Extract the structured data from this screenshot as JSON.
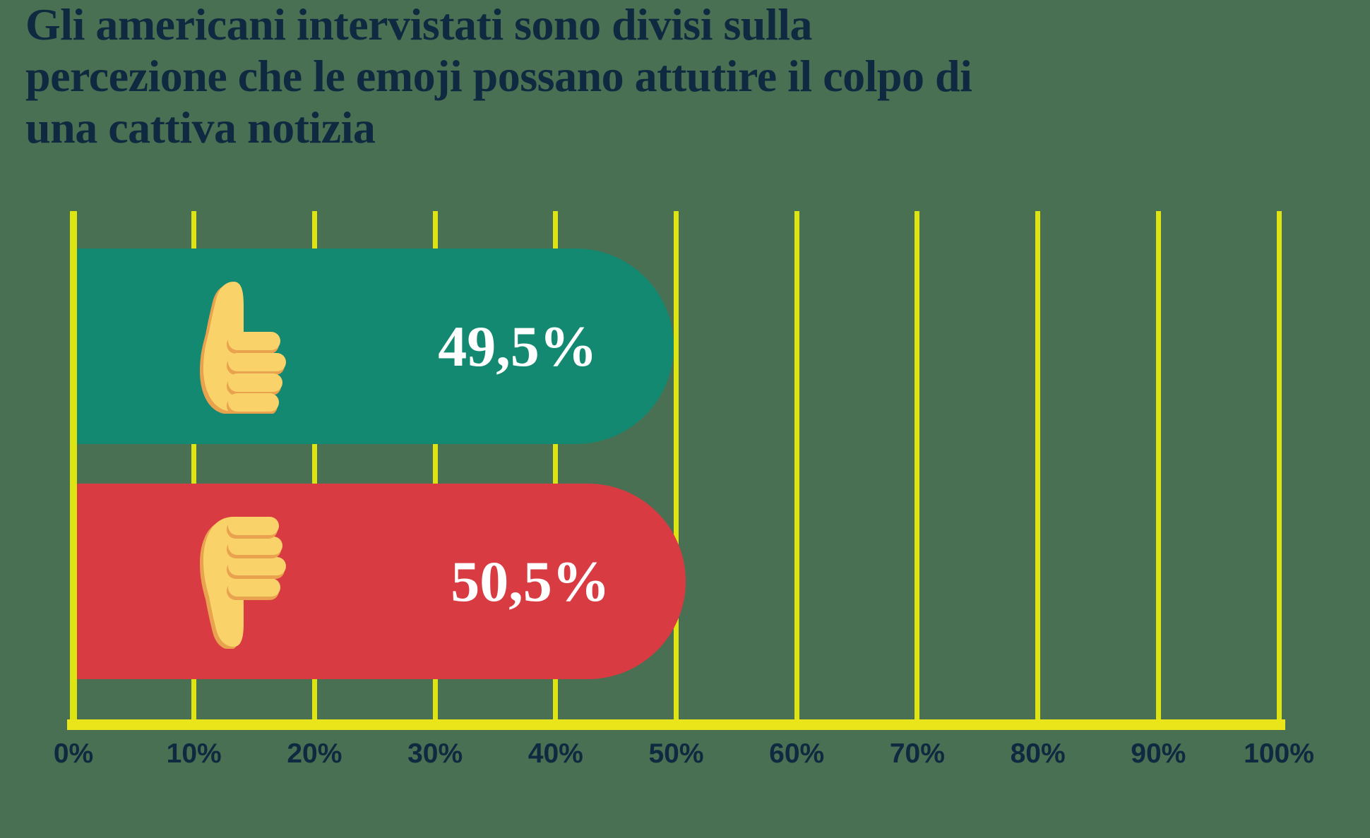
{
  "title": {
    "text": "Gli americani intervistati sono divisi sulla percezione che le emoji possano attutire il colpo di una cattiva notizia",
    "lines": [
      "Gli americani intervistati sono divisi sulla",
      "percezione che le emoji possano attutire il colpo di",
      "una cattiva notizia"
    ]
  },
  "chart_data": {
    "type": "bar",
    "orientation": "horizontal",
    "title": "Gli americani intervistati sono divisi sulla percezione che le emoji possano attutire il colpo di una cattiva notizia",
    "categories": [
      "thumbs-up",
      "thumbs-down"
    ],
    "values": [
      49.5,
      50.5
    ],
    "bars": [
      {
        "icon": "thumbs-up-emoji",
        "value": 49.5,
        "label": "49,5%",
        "color": "#128970"
      },
      {
        "icon": "thumbs-down-emoji",
        "value": 50.5,
        "label": "50,5%",
        "color": "#d93b42"
      }
    ],
    "xlabel": "",
    "ylabel": "",
    "xlim": [
      0,
      100
    ],
    "x_ticks": [
      "0%",
      "10%",
      "20%",
      "30%",
      "40%",
      "50%",
      "60%",
      "70%",
      "80%",
      "90%",
      "100%"
    ],
    "grid": "vertical",
    "legend": "none"
  },
  "colors": {
    "background": "#4a7053",
    "bar_positive": "#128970",
    "bar_negative": "#d93b42",
    "gridline": "#dde412",
    "baseline": "#e9e51a",
    "text_dark": "#0f2940",
    "text_light": "#ffffff",
    "emoji_fill": "#f9d36a",
    "emoji_shadow": "#e9a24d"
  }
}
